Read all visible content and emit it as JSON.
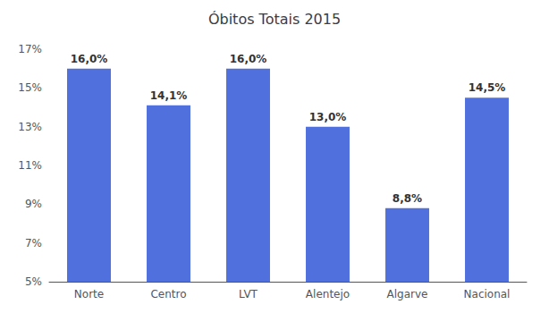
{
  "chart_data": {
    "type": "bar",
    "title": "Óbitos Totais 2015",
    "categories": [
      "Norte",
      "Centro",
      "LVT",
      "Alentejo",
      "Algarve",
      "Nacional"
    ],
    "values": [
      16.0,
      14.1,
      16.0,
      13.0,
      8.8,
      14.5
    ],
    "value_labels": [
      "16,0%",
      "14,1%",
      "16,0%",
      "13,0%",
      "8,8%",
      "14,5%"
    ],
    "data_labels": true,
    "ylim": [
      5,
      17
    ],
    "yticks": [
      {
        "value": 5,
        "label": "5%"
      },
      {
        "value": 7,
        "label": "7%"
      },
      {
        "value": 9,
        "label": "9%"
      },
      {
        "value": 11,
        "label": "11%"
      },
      {
        "value": 13,
        "label": "13%"
      },
      {
        "value": 15,
        "label": "15%"
      },
      {
        "value": 17,
        "label": "17%"
      }
    ],
    "grid": false
  }
}
